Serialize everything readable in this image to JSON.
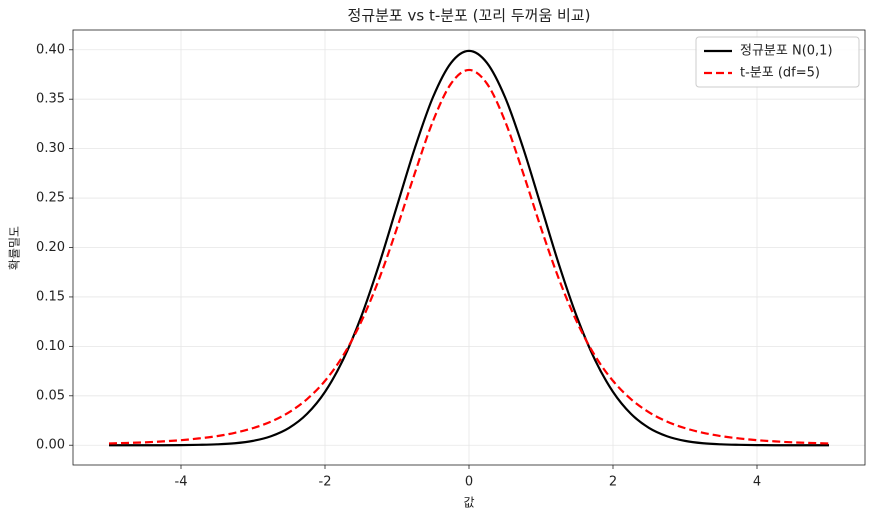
{
  "chart_data": {
    "type": "line",
    "title": "정규분포 vs t-분포 (꼬리 두꺼움 비교)",
    "x_label": "값",
    "y_label": "확률밀도",
    "x": [
      -5,
      -4.75,
      -4.5,
      -4.25,
      -4,
      -3.75,
      -3.5,
      -3.25,
      -3,
      -2.75,
      -2.5,
      -2.25,
      -2,
      -1.75,
      -1.5,
      -1.25,
      -1,
      -0.75,
      -0.5,
      -0.25,
      0,
      0.25,
      0.5,
      0.75,
      1,
      1.25,
      1.5,
      1.75,
      2,
      2.25,
      2.5,
      2.75,
      3,
      3.25,
      3.5,
      3.75,
      4,
      4.25,
      4.5,
      4.75,
      5
    ],
    "series": [
      {
        "name": "정규분포 N(0,1)",
        "color": "#000000",
        "linestyle": "solid",
        "values": [
          0.0,
          0.0,
          0.0,
          0.0,
          0.0001,
          0.0004,
          0.0009,
          0.002,
          0.0044,
          0.0091,
          0.0175,
          0.0317,
          0.054,
          0.0863,
          0.1295,
          0.1826,
          0.242,
          0.3011,
          0.3521,
          0.3867,
          0.3989,
          0.3867,
          0.3521,
          0.3011,
          0.242,
          0.1826,
          0.1295,
          0.0863,
          0.054,
          0.0317,
          0.0175,
          0.0091,
          0.0044,
          0.002,
          0.0009,
          0.0004,
          0.0001,
          0.0,
          0.0,
          0.0,
          0.0
        ]
      },
      {
        "name": "t-분포 (df=5)",
        "color": "#ff0000",
        "linestyle": "dashed",
        "values": [
          0.0018,
          0.0023,
          0.0029,
          0.0039,
          0.0051,
          0.0069,
          0.0092,
          0.0126,
          0.0173,
          0.0239,
          0.0333,
          0.0466,
          0.0651,
          0.0905,
          0.1245,
          0.1679,
          0.2197,
          0.2757,
          0.3279,
          0.3657,
          0.3796,
          0.3657,
          0.3279,
          0.2757,
          0.2197,
          0.1679,
          0.1245,
          0.0905,
          0.0651,
          0.0466,
          0.0333,
          0.0239,
          0.0173,
          0.0126,
          0.0092,
          0.0069,
          0.0051,
          0.0039,
          0.0029,
          0.0023,
          0.0018
        ]
      }
    ],
    "xlim": [
      -5.5,
      5.5
    ],
    "xticks": [
      -4,
      -2,
      0,
      2,
      4
    ],
    "ylim": [
      -0.02,
      0.42
    ],
    "yticks": [
      {
        "value": 0,
        "label": "0.00"
      },
      {
        "value": 0.05,
        "label": "0.05"
      },
      {
        "value": 0.1,
        "label": "0.10"
      },
      {
        "value": 0.15,
        "label": "0.15"
      },
      {
        "value": 0.2,
        "label": "0.20"
      },
      {
        "value": 0.25,
        "label": "0.25"
      },
      {
        "value": 0.3,
        "label": "0.30"
      },
      {
        "value": 0.35,
        "label": "0.35"
      },
      {
        "value": 0.4,
        "label": "0.40"
      }
    ],
    "grid": true,
    "legend": "upper right"
  }
}
